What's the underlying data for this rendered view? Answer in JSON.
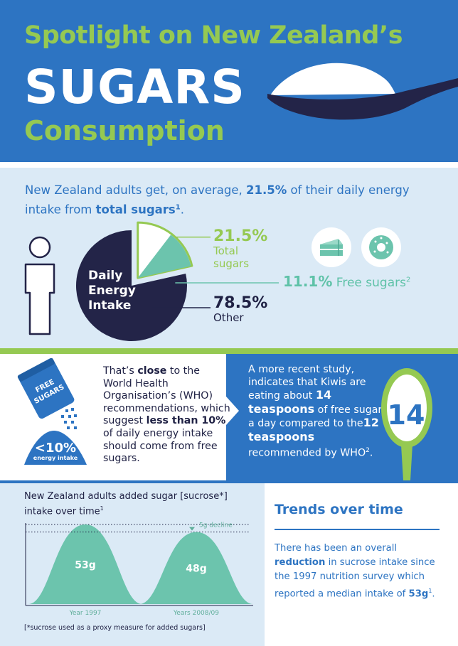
{
  "header": {
    "line1": "Spotlight on New Zealand’s",
    "line2": "SUGARS",
    "line3": "Consumption"
  },
  "intro": {
    "part1": "New Zealand adults get, on average, ",
    "pct": "21.5%",
    "part2": " of their daily energy intake from ",
    "bold": "total sugars",
    "sup": "1",
    "end": "."
  },
  "pie": {
    "title": "Daily Energy Intake",
    "total_pct": "21.5%",
    "total_label": "Total sugars",
    "free_pct": "11.1%",
    "free_label": " Free sugars",
    "free_sup": "2",
    "other_pct": "78.5%",
    "other_label": "Other",
    "icons": [
      "cake-icon",
      "donut-icon"
    ],
    "colors": {
      "other": "#232448",
      "total": "#95c952",
      "free": "#6cc4ad"
    }
  },
  "chart_data": {
    "type": "pie",
    "title": "Daily Energy Intake",
    "slices": [
      {
        "name": "Total sugars",
        "value": 21.5
      },
      {
        "name": "Other",
        "value": 78.5
      }
    ],
    "sub_slices": [
      {
        "name": "Free sugars",
        "value": 11.1,
        "parent": "Total sugars"
      }
    ]
  },
  "who": {
    "bag_label_1": "FREE",
    "bag_label_2": "SUGARS",
    "lt10": "<10%",
    "lt10_sub": "energy intake",
    "t1": "That’s ",
    "b1": "close",
    "t2": " to the World Health Organisation’s (WHO) recommendations, which suggest ",
    "b2": "less than 10%",
    "t3": " of daily energy intake should come from free sugars."
  },
  "study": {
    "t1": "A more recent study, indicates that Kiwis are eating about ",
    "b1": "14 teaspoons",
    "t2": " of free sugars a day compared to the",
    "b2": "12 teaspoons",
    "t3": " recommended by WHO",
    "sup": "2",
    "end": ".",
    "spoon_value": "14"
  },
  "intake_chart": {
    "title_main": "New Zealand adults added sugar [sucrose*] intake over time",
    "title_sup": "1",
    "peaks": [
      {
        "label": "Year 1997",
        "value": "53g",
        "grams": 53
      },
      {
        "label": "Years 2008/09",
        "value": "48g",
        "grams": 48
      }
    ],
    "decline_label": "5g decline",
    "footnote": "[*sucrose used as a proxy measure for added sugars]"
  },
  "trends": {
    "title": "Trends over time",
    "t1": "There has been an overall ",
    "b1": "reduction",
    "t2": " in sucrose intake since the 1997 nutrition survey which reported a median intake of ",
    "b2": "53g",
    "sup": "1",
    "end": "."
  }
}
